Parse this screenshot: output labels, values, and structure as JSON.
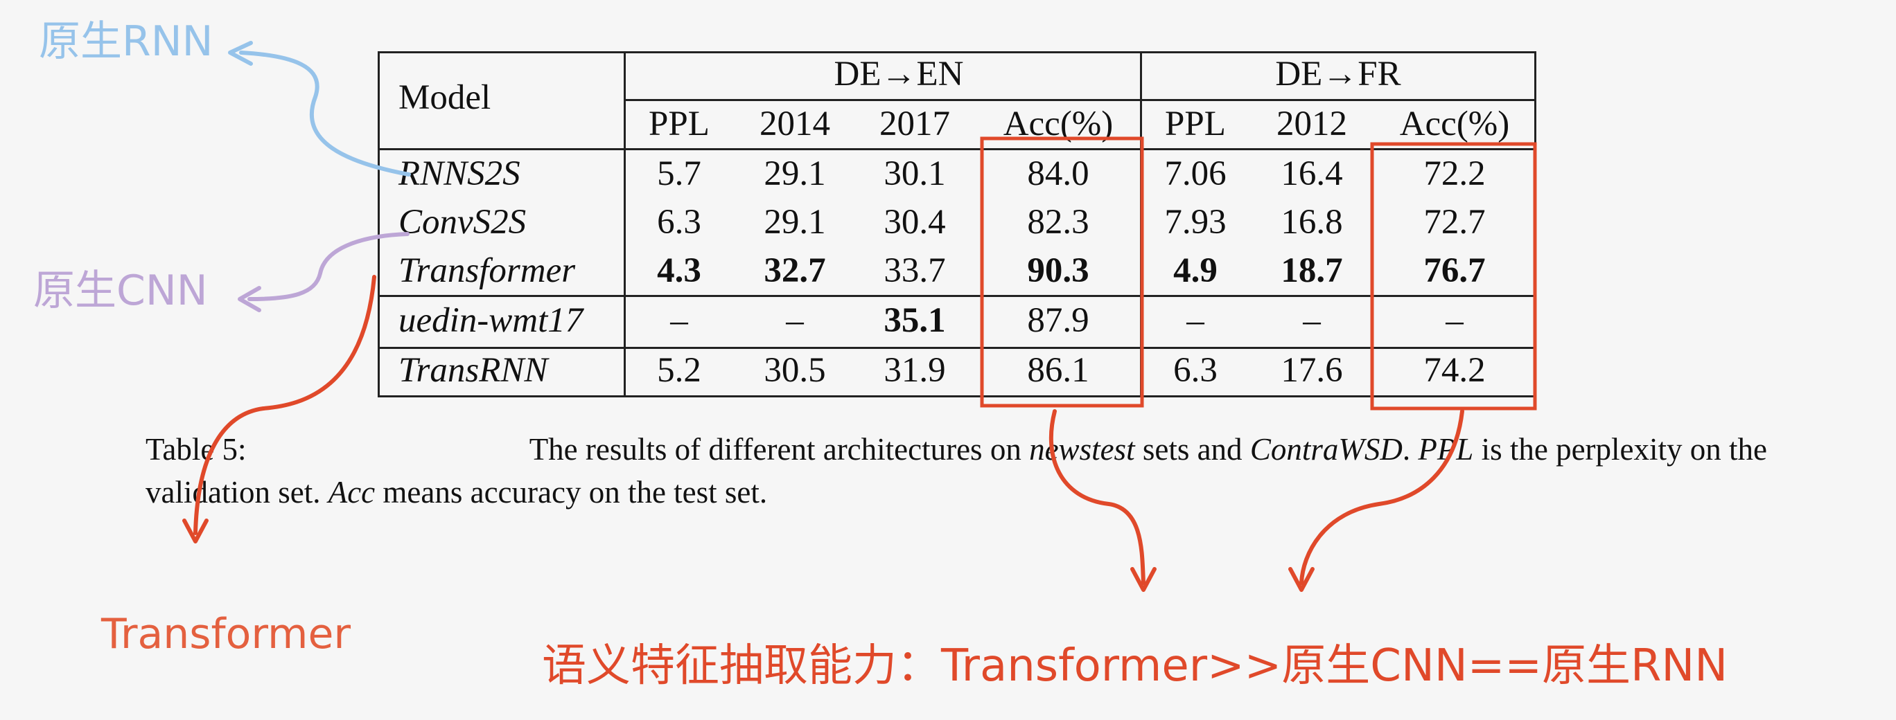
{
  "annotations": {
    "rnn_label": "原生RNN",
    "cnn_label": "原生CNN",
    "transformer_label": "Transformer",
    "conclusion": "语义特征抽取能力：Transformer>>原生CNN==原生RNN"
  },
  "colors": {
    "rnn": "#96c3ea",
    "cnn": "#bda6d6",
    "highlight": "#e0492a"
  },
  "table": {
    "model_header": "Model",
    "group_en": "DE→EN",
    "group_fr": "DE→FR",
    "columns": [
      "PPL",
      "2014",
      "2017",
      "Acc(%)",
      "PPL",
      "2012",
      "Acc(%)"
    ],
    "rows": [
      {
        "model": "RNNS2S",
        "cells": [
          "5.7",
          "29.1",
          "30.1",
          "84.0",
          "7.06",
          "16.4",
          "72.2"
        ],
        "bold": []
      },
      {
        "model": "ConvS2S",
        "cells": [
          "6.3",
          "29.1",
          "30.4",
          "82.3",
          "7.93",
          "16.8",
          "72.7"
        ],
        "bold": []
      },
      {
        "model": "Transformer",
        "cells": [
          "4.3",
          "32.7",
          "33.7",
          "90.3",
          "4.9",
          "18.7",
          "76.7"
        ],
        "bold": [
          0,
          1,
          3,
          4,
          5,
          6
        ]
      },
      {
        "model": "uedin-wmt17",
        "cells": [
          "–",
          "–",
          "35.1",
          "87.9",
          "–",
          "–",
          "–"
        ],
        "bold": [
          2
        ]
      },
      {
        "model": "TransRNN",
        "cells": [
          "5.2",
          "30.5",
          "31.9",
          "86.1",
          "6.3",
          "17.6",
          "74.2"
        ],
        "bold": []
      }
    ]
  },
  "caption": {
    "label": "Table 5:",
    "t1": "The results of different architectures on ",
    "t2": "newstest",
    "t3": " sets and ",
    "t4": "ContraWSD",
    "t5": ". ",
    "t6": "PPL",
    "t7": " is the perplexity on the",
    "t8": "validation set. ",
    "t9": "Acc",
    "t10": " means accuracy on the test set."
  }
}
